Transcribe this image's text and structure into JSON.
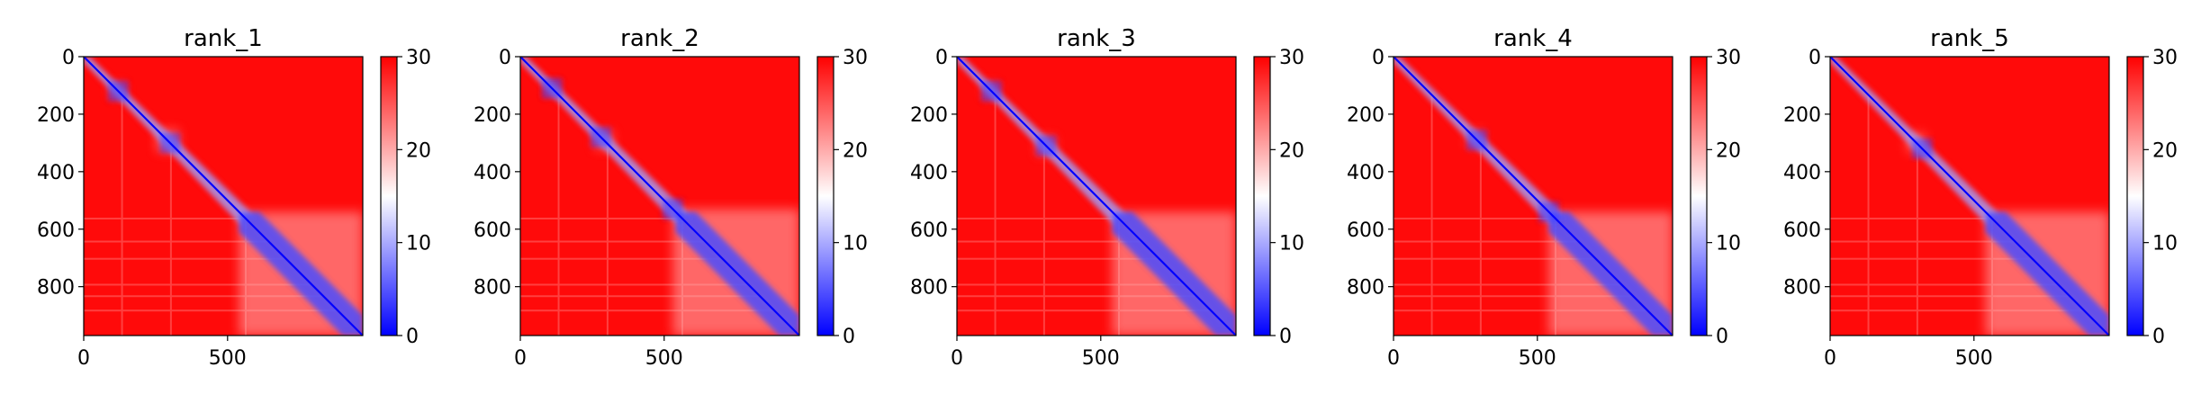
{
  "chart_data": [
    {
      "type": "heatmap",
      "title": "rank_1",
      "x_ticks": [
        "0",
        "500"
      ],
      "y_ticks": [
        "0",
        "200",
        "400",
        "600",
        "800"
      ],
      "x_range": [
        0,
        970
      ],
      "y_range": [
        0,
        970
      ],
      "colorbar": {
        "ticks": [
          "0",
          "10",
          "20",
          "30"
        ],
        "range": [
          0,
          30
        ],
        "colormap": "bwr"
      },
      "diagonal_domains": [
        [
          95,
          140
        ],
        [
          255,
          330
        ],
        [
          540,
          970
        ]
      ],
      "blue_block_centers": [
        120,
        300
      ]
    },
    {
      "type": "heatmap",
      "title": "rank_2",
      "x_ticks": [
        "0",
        "500"
      ],
      "y_ticks": [
        "0",
        "200",
        "400",
        "600",
        "800"
      ],
      "x_range": [
        0,
        970
      ],
      "y_range": [
        0,
        970
      ],
      "colorbar": {
        "ticks": [
          "0",
          "10",
          "20",
          "30"
        ],
        "range": [
          0,
          30
        ],
        "colormap": "bwr"
      },
      "diagonal_domains": [
        [
          95,
          130
        ],
        [
          260,
          320
        ],
        [
          530,
          970
        ]
      ],
      "blue_block_centers": [
        110,
        280,
        530
      ]
    },
    {
      "type": "heatmap",
      "title": "rank_3",
      "x_ticks": [
        "0",
        "500"
      ],
      "y_ticks": [
        "0",
        "200",
        "400",
        "600",
        "800"
      ],
      "x_range": [
        0,
        970
      ],
      "y_range": [
        0,
        970
      ],
      "colorbar": {
        "ticks": [
          "0",
          "10",
          "20",
          "30"
        ],
        "range": [
          0,
          30
        ],
        "colormap": "bwr"
      },
      "diagonal_domains": [
        [
          95,
          140
        ],
        [
          280,
          340
        ],
        [
          540,
          970
        ]
      ],
      "blue_block_centers": [
        120,
        310
      ]
    },
    {
      "type": "heatmap",
      "title": "rank_4",
      "x_ticks": [
        "0",
        "500"
      ],
      "y_ticks": [
        "0",
        "200",
        "400",
        "600",
        "800"
      ],
      "x_range": [
        0,
        970
      ],
      "y_range": [
        0,
        970
      ],
      "colorbar": {
        "ticks": [
          "0",
          "10",
          "20",
          "30"
        ],
        "range": [
          0,
          30
        ],
        "colormap": "bwr"
      },
      "diagonal_domains": [
        [
          260,
          310
        ],
        [
          540,
          970
        ]
      ],
      "blue_block_centers": [
        290,
        540
      ]
    },
    {
      "type": "heatmap",
      "title": "rank_5",
      "x_ticks": [
        "0",
        "500"
      ],
      "y_ticks": [
        "0",
        "200",
        "400",
        "600",
        "800"
      ],
      "x_range": [
        0,
        970
      ],
      "y_range": [
        0,
        970
      ],
      "colorbar": {
        "ticks": [
          "0",
          "10",
          "20",
          "30"
        ],
        "range": [
          0,
          30
        ],
        "colormap": "bwr"
      },
      "diagonal_domains": [
        [
          270,
          330
        ],
        [
          540,
          970
        ]
      ],
      "blue_block_centers": [
        320
      ]
    }
  ],
  "colors": {
    "high": "#ff0000",
    "mid": "#ffffff",
    "low": "#0000ff",
    "axis": "#000000"
  }
}
